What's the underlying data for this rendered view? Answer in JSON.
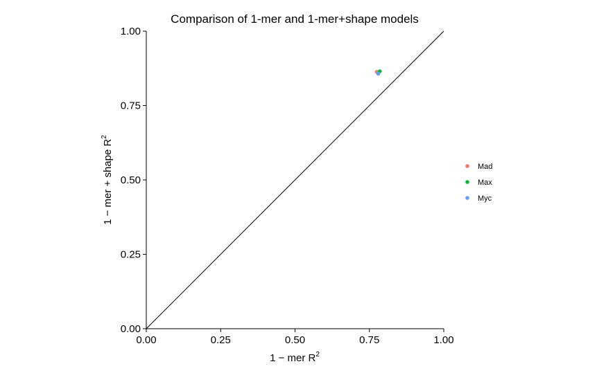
{
  "chart_data": {
    "type": "scatter",
    "title": "Comparison of 1-mer and 1-mer+shape models",
    "xlabel": {
      "base": "1 − mer R",
      "sup": "2"
    },
    "ylabel": {
      "base": "1 − mer + shape R",
      "sup": "2"
    },
    "xlim": [
      0,
      1
    ],
    "ylim": [
      0,
      1
    ],
    "x_ticks": [
      "0.00",
      "0.25",
      "0.50",
      "0.75",
      "1.00"
    ],
    "y_ticks": [
      "0.00",
      "0.25",
      "0.50",
      "0.75",
      "1.00"
    ],
    "reference_line": "y = x",
    "grid": false,
    "legend_position": "right",
    "series": [
      {
        "name": "Mad",
        "color": "#F8766D",
        "x": 0.775,
        "y": 0.863
      },
      {
        "name": "Max",
        "color": "#00BA38",
        "x": 0.785,
        "y": 0.865
      },
      {
        "name": "Myc",
        "color": "#619CFF",
        "x": 0.78,
        "y": 0.857
      }
    ]
  }
}
